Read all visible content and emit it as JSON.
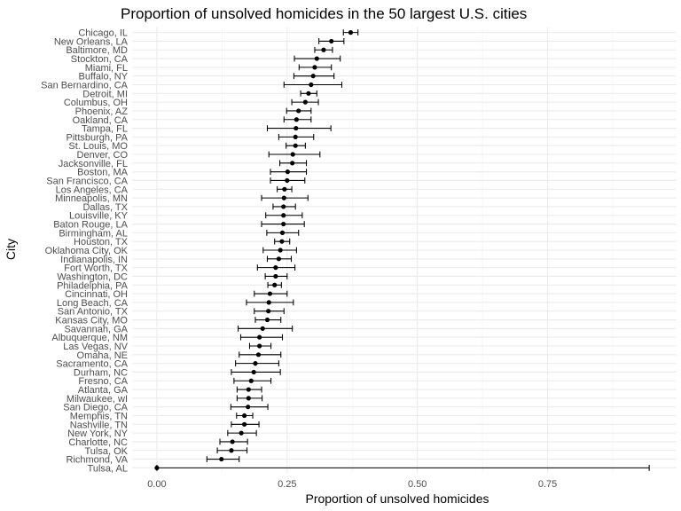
{
  "chart_data": {
    "type": "scatter",
    "title": "Proportion of unsolved homicides in the 50 largest U.S. cities",
    "xlabel": "Proportion of unsolved homicides",
    "ylabel": "City",
    "xlim": [
      -0.0475,
      0.9975
    ],
    "x_ticks": [
      0,
      0.25,
      0.5,
      0.75
    ],
    "x_tick_labels": [
      "0.00",
      "0.25",
      "0.50",
      "0.75"
    ],
    "grid": true,
    "error_bars": true,
    "points": [
      {
        "city": "Chicago, IL",
        "estimate": 0.372,
        "low": 0.358,
        "high": 0.386
      },
      {
        "city": "New Orleans, LA",
        "estimate": 0.335,
        "low": 0.311,
        "high": 0.359
      },
      {
        "city": "Baltimore, MD",
        "estimate": 0.32,
        "low": 0.303,
        "high": 0.337
      },
      {
        "city": "Stockton, CA",
        "estimate": 0.307,
        "low": 0.264,
        "high": 0.352
      },
      {
        "city": "Miami, FL",
        "estimate": 0.303,
        "low": 0.273,
        "high": 0.335
      },
      {
        "city": "Buffalo, NY",
        "estimate": 0.3,
        "low": 0.263,
        "high": 0.34
      },
      {
        "city": "San Bernardino, CA",
        "estimate": 0.296,
        "low": 0.244,
        "high": 0.355
      },
      {
        "city": "Detroit, MI",
        "estimate": 0.291,
        "low": 0.276,
        "high": 0.307
      },
      {
        "city": "Columbus, OH",
        "estimate": 0.285,
        "low": 0.259,
        "high": 0.31
      },
      {
        "city": "Phoenix, AZ",
        "estimate": 0.272,
        "low": 0.249,
        "high": 0.296
      },
      {
        "city": "Oakland, CA",
        "estimate": 0.268,
        "low": 0.244,
        "high": 0.296
      },
      {
        "city": "Tampa, FL",
        "estimate": 0.267,
        "low": 0.212,
        "high": 0.334
      },
      {
        "city": "Pittsburgh, PA",
        "estimate": 0.266,
        "low": 0.234,
        "high": 0.301
      },
      {
        "city": "St. Louis, MO",
        "estimate": 0.266,
        "low": 0.248,
        "high": 0.285
      },
      {
        "city": "Denver, CO",
        "estimate": 0.261,
        "low": 0.215,
        "high": 0.313
      },
      {
        "city": "Jacksonville, FL",
        "estimate": 0.26,
        "low": 0.236,
        "high": 0.287
      },
      {
        "city": "Boston, MA",
        "estimate": 0.251,
        "low": 0.218,
        "high": 0.287
      },
      {
        "city": "San Francisco, CA",
        "estimate": 0.25,
        "low": 0.218,
        "high": 0.284
      },
      {
        "city": "Los Angeles, CA",
        "estimate": 0.245,
        "low": 0.231,
        "high": 0.259
      },
      {
        "city": "Minneapolis, MN",
        "estimate": 0.244,
        "low": 0.201,
        "high": 0.29
      },
      {
        "city": "Dallas, TX",
        "estimate": 0.243,
        "low": 0.223,
        "high": 0.266
      },
      {
        "city": "Louisville, KY",
        "estimate": 0.243,
        "low": 0.209,
        "high": 0.279
      },
      {
        "city": "Baton Rouge, LA",
        "estimate": 0.243,
        "low": 0.201,
        "high": 0.283
      },
      {
        "city": "Birmingham, AL",
        "estimate": 0.241,
        "low": 0.211,
        "high": 0.272
      },
      {
        "city": "Houston, TX",
        "estimate": 0.24,
        "low": 0.226,
        "high": 0.255
      },
      {
        "city": "Oklahoma City, OK",
        "estimate": 0.237,
        "low": 0.204,
        "high": 0.268
      },
      {
        "city": "Indianapolis, IN",
        "estimate": 0.234,
        "low": 0.212,
        "high": 0.258
      },
      {
        "city": "Fort Worth, TX",
        "estimate": 0.228,
        "low": 0.193,
        "high": 0.265
      },
      {
        "city": "Washington, DC",
        "estimate": 0.228,
        "low": 0.208,
        "high": 0.25
      },
      {
        "city": "Philadelphia, PA",
        "estimate": 0.226,
        "low": 0.213,
        "high": 0.239
      },
      {
        "city": "Cincinnati, OH",
        "estimate": 0.217,
        "low": 0.187,
        "high": 0.25
      },
      {
        "city": "Long Beach, CA",
        "estimate": 0.215,
        "low": 0.172,
        "high": 0.262
      },
      {
        "city": "San Antonio, TX",
        "estimate": 0.214,
        "low": 0.187,
        "high": 0.244
      },
      {
        "city": "Kansas City, MO",
        "estimate": 0.212,
        "low": 0.189,
        "high": 0.238
      },
      {
        "city": "Savannah, GA",
        "estimate": 0.203,
        "low": 0.156,
        "high": 0.26
      },
      {
        "city": "Albuquerque, NM",
        "estimate": 0.197,
        "low": 0.161,
        "high": 0.241
      },
      {
        "city": "Las Vegas, NV",
        "estimate": 0.197,
        "low": 0.178,
        "high": 0.219
      },
      {
        "city": "Omaha, NE",
        "estimate": 0.195,
        "low": 0.158,
        "high": 0.238
      },
      {
        "city": "Sacramento, CA",
        "estimate": 0.189,
        "low": 0.151,
        "high": 0.234
      },
      {
        "city": "Durham, NC",
        "estimate": 0.186,
        "low": 0.143,
        "high": 0.237
      },
      {
        "city": "Fresno, CA",
        "estimate": 0.181,
        "low": 0.148,
        "high": 0.219
      },
      {
        "city": "Atlanta, GA",
        "estimate": 0.176,
        "low": 0.154,
        "high": 0.201
      },
      {
        "city": "Milwaukee, wI",
        "estimate": 0.176,
        "low": 0.154,
        "high": 0.202
      },
      {
        "city": "San Diego, CA",
        "estimate": 0.175,
        "low": 0.142,
        "high": 0.213
      },
      {
        "city": "Memphis, TN",
        "estimate": 0.168,
        "low": 0.153,
        "high": 0.184
      },
      {
        "city": "Nashville, TN",
        "estimate": 0.168,
        "low": 0.143,
        "high": 0.196
      },
      {
        "city": "New York, NY",
        "estimate": 0.162,
        "low": 0.136,
        "high": 0.191
      },
      {
        "city": "Charlotte, NC",
        "estimate": 0.145,
        "low": 0.121,
        "high": 0.174
      },
      {
        "city": "Tulsa, OK",
        "estimate": 0.143,
        "low": 0.116,
        "high": 0.173
      },
      {
        "city": "Richmond, VA",
        "estimate": 0.124,
        "low": 0.096,
        "high": 0.158
      },
      {
        "city": "Tulsa, AL",
        "estimate": 0.0,
        "low": 0.0,
        "high": 0.945
      }
    ]
  }
}
